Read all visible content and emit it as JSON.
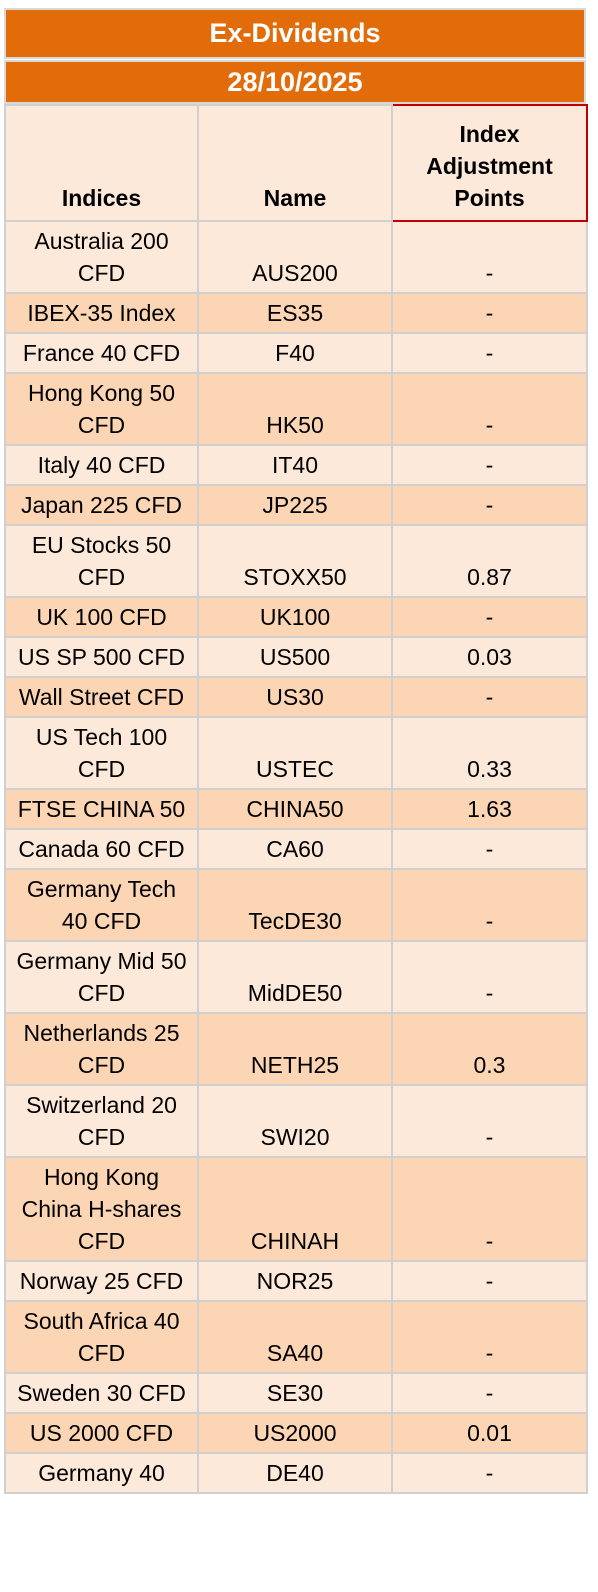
{
  "header": {
    "title": "Ex-Dividends",
    "date": "28/10/2025"
  },
  "columns": {
    "indices": "Indices",
    "name": "Name",
    "adjustment": "Index Adjustment Points"
  },
  "rows": [
    {
      "index": "Australia 200 CFD",
      "name": "AUS200",
      "points": "-"
    },
    {
      "index": "IBEX-35 Index",
      "name": "ES35",
      "points": "-"
    },
    {
      "index": "France 40 CFD",
      "name": "F40",
      "points": "-"
    },
    {
      "index": "Hong Kong 50 CFD",
      "name": "HK50",
      "points": "-"
    },
    {
      "index": "Italy 40 CFD",
      "name": "IT40",
      "points": "-"
    },
    {
      "index": "Japan 225 CFD",
      "name": "JP225",
      "points": "-"
    },
    {
      "index": "EU Stocks 50 CFD",
      "name": "STOXX50",
      "points": "0.87"
    },
    {
      "index": "UK 100 CFD",
      "name": "UK100",
      "points": "-"
    },
    {
      "index": "US SP 500 CFD",
      "name": "US500",
      "points": "0.03"
    },
    {
      "index": "Wall Street CFD",
      "name": "US30",
      "points": "-"
    },
    {
      "index": "US Tech 100 CFD",
      "name": "USTEC",
      "points": "0.33"
    },
    {
      "index": "FTSE CHINA 50",
      "name": "CHINA50",
      "points": "1.63"
    },
    {
      "index": "Canada 60 CFD",
      "name": "CA60",
      "points": "-"
    },
    {
      "index": "Germany Tech 40 CFD",
      "name": "TecDE30",
      "points": "-"
    },
    {
      "index": "Germany Mid 50 CFD",
      "name": "MidDE50",
      "points": "-"
    },
    {
      "index": "Netherlands 25 CFD",
      "name": "NETH25",
      "points": "0.3"
    },
    {
      "index": "Switzerland 20 CFD",
      "name": "SWI20",
      "points": "-"
    },
    {
      "index": "Hong Kong China H-shares CFD",
      "name": "CHINAH",
      "points": "-"
    },
    {
      "index": "Norway 25 CFD",
      "name": "NOR25",
      "points": "-"
    },
    {
      "index": "South Africa 40 CFD",
      "name": "SA40",
      "points": "-"
    },
    {
      "index": "Sweden 30 CFD",
      "name": "SE30",
      "points": "-"
    },
    {
      "index": "US 2000 CFD",
      "name": "US2000",
      "points": "0.01"
    },
    {
      "index": "Germany 40",
      "name": "DE40",
      "points": "-"
    }
  ]
}
